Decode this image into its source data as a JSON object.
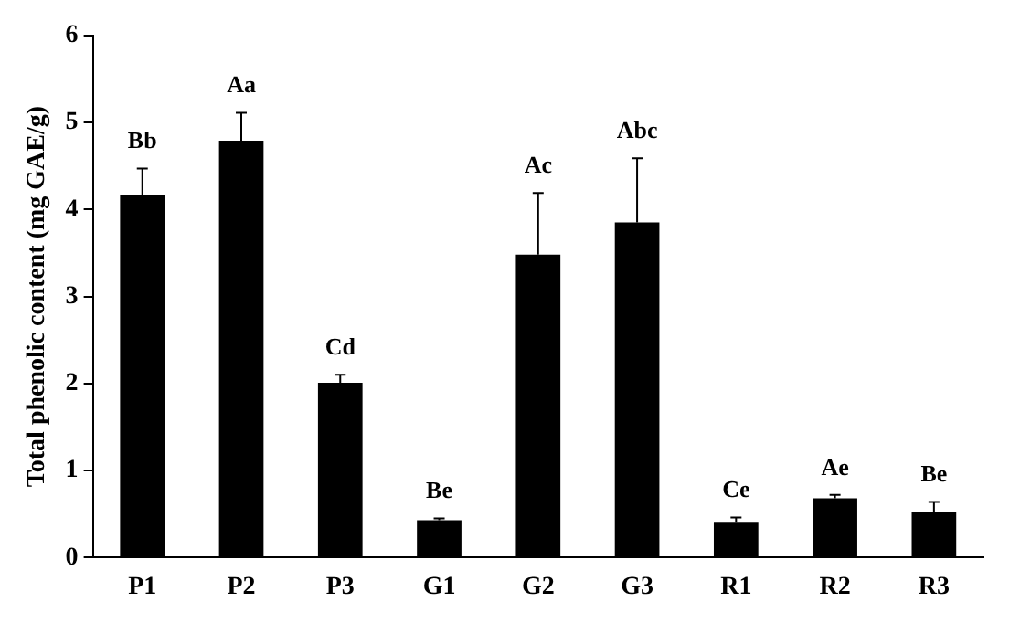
{
  "chart_data": {
    "type": "bar",
    "ylabel": "Total phenolic content (mg GAE/g)",
    "categories": [
      "P1",
      "P2",
      "P3",
      "G1",
      "G2",
      "G3",
      "R1",
      "R2",
      "R3"
    ],
    "values": [
      4.17,
      4.79,
      2.01,
      0.43,
      3.48,
      3.85,
      0.41,
      0.68,
      0.53
    ],
    "errors": [
      0.3,
      0.32,
      0.09,
      0.02,
      0.71,
      0.74,
      0.05,
      0.04,
      0.11
    ],
    "color": "#000000",
    "ylim": [
      0,
      6
    ],
    "yticks": [
      0,
      1,
      2,
      3,
      4,
      5,
      6
    ],
    "grid": false,
    "legend": false,
    "annotations": [
      {
        "text": "Bb",
        "x": "P1",
        "y": 4.47
      },
      {
        "text": "Aa",
        "x": "P2",
        "y": 5.11
      },
      {
        "text": "Cd",
        "x": "P3",
        "y": 2.1
      },
      {
        "text": "Be",
        "x": "G1",
        "y": 0.45
      },
      {
        "text": "Ac",
        "x": "G2",
        "y": 4.19
      },
      {
        "text": "Abc",
        "x": "G3",
        "y": 4.59
      },
      {
        "text": "Ce",
        "x": "R1",
        "y": 0.46
      },
      {
        "text": "Ae",
        "x": "R2",
        "y": 0.72
      },
      {
        "text": "Be",
        "x": "R3",
        "y": 0.64
      }
    ]
  }
}
